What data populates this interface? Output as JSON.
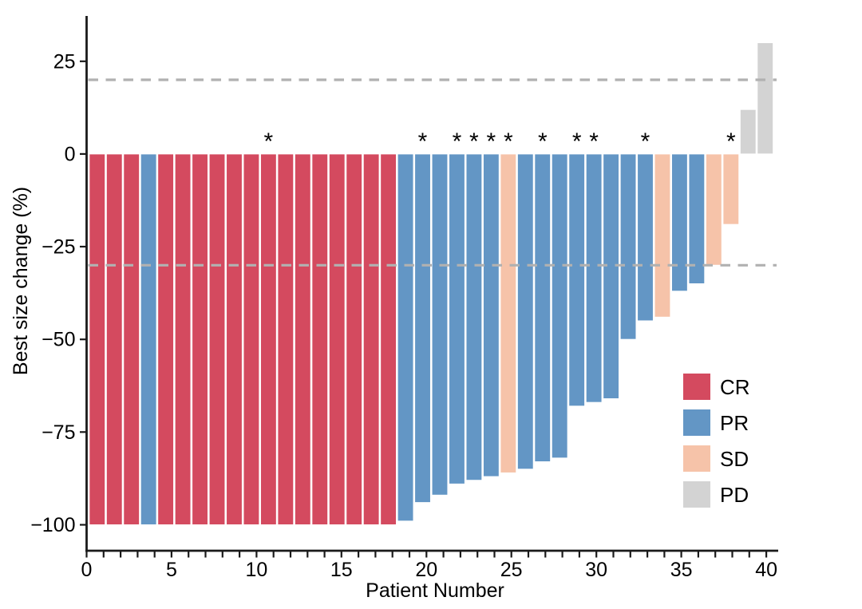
{
  "chart_data": {
    "type": "bar",
    "title": "",
    "xlabel": "Patient Number",
    "ylabel": "Best size change (%)",
    "grid": false,
    "xlim": [
      0,
      40.7
    ],
    "ylim": [
      -107,
      37
    ],
    "bar_region_u": [
      0.12,
      40.44
    ],
    "xticks": [
      {
        "v": 0,
        "label": "0"
      },
      {
        "v": 5,
        "label": "5"
      },
      {
        "v": 10,
        "label": "10"
      },
      {
        "v": 15,
        "label": "15"
      },
      {
        "v": 20,
        "label": "20"
      },
      {
        "v": 25,
        "label": "25"
      },
      {
        "v": 30,
        "label": "30"
      },
      {
        "v": 35,
        "label": "35"
      },
      {
        "v": 40,
        "label": "40"
      }
    ],
    "xticks_minor_step": 1,
    "yticks": [
      {
        "v": 25,
        "label": "25"
      },
      {
        "v": 0,
        "label": "0"
      },
      {
        "v": -25,
        "label": "−25"
      },
      {
        "v": -50,
        "label": "−50"
      },
      {
        "v": -75,
        "label": "−75"
      },
      {
        "v": -100,
        "label": "−100"
      }
    ],
    "reference_lines": [
      {
        "name": "upper",
        "v": 20,
        "color": "#b1b1b1",
        "style": "dashed"
      },
      {
        "name": "lower",
        "v": -30,
        "color": "#b1b1b1",
        "style": "dashed"
      }
    ],
    "annotation_symbol": "*",
    "colors": {
      "CR": "#d44a5f",
      "PR": "#6396c5",
      "SD": "#f6c3a9",
      "PD": "#d3d3d3"
    },
    "legend": {
      "position": "inside-right",
      "entries": [
        {
          "label": "CR",
          "response": "CR"
        },
        {
          "label": "PR",
          "response": "PR"
        },
        {
          "label": "SD",
          "response": "SD"
        },
        {
          "label": "PD",
          "response": "PD"
        }
      ]
    },
    "patients": [
      {
        "n": 1,
        "value": -100,
        "response": "CR",
        "star": false
      },
      {
        "n": 2,
        "value": -100,
        "response": "CR",
        "star": false
      },
      {
        "n": 3,
        "value": -100,
        "response": "CR",
        "star": false
      },
      {
        "n": 4,
        "value": -100,
        "response": "PR",
        "star": false
      },
      {
        "n": 5,
        "value": -100,
        "response": "CR",
        "star": false
      },
      {
        "n": 6,
        "value": -100,
        "response": "CR",
        "star": false
      },
      {
        "n": 7,
        "value": -100,
        "response": "CR",
        "star": false
      },
      {
        "n": 8,
        "value": -100,
        "response": "CR",
        "star": false
      },
      {
        "n": 9,
        "value": -100,
        "response": "CR",
        "star": false
      },
      {
        "n": 10,
        "value": -100,
        "response": "CR",
        "star": false
      },
      {
        "n": 11,
        "value": -100,
        "response": "CR",
        "star": true
      },
      {
        "n": 12,
        "value": -100,
        "response": "CR",
        "star": false
      },
      {
        "n": 13,
        "value": -100,
        "response": "CR",
        "star": false
      },
      {
        "n": 14,
        "value": -100,
        "response": "CR",
        "star": false
      },
      {
        "n": 15,
        "value": -100,
        "response": "CR",
        "star": false
      },
      {
        "n": 16,
        "value": -100,
        "response": "CR",
        "star": false
      },
      {
        "n": 17,
        "value": -100,
        "response": "CR",
        "star": false
      },
      {
        "n": 18,
        "value": -100,
        "response": "CR",
        "star": false
      },
      {
        "n": 19,
        "value": -99,
        "response": "PR",
        "star": false
      },
      {
        "n": 20,
        "value": -94,
        "response": "PR",
        "star": true
      },
      {
        "n": 21,
        "value": -92,
        "response": "PR",
        "star": false
      },
      {
        "n": 22,
        "value": -89,
        "response": "PR",
        "star": true
      },
      {
        "n": 23,
        "value": -88,
        "response": "PR",
        "star": true
      },
      {
        "n": 24,
        "value": -87,
        "response": "PR",
        "star": true
      },
      {
        "n": 25,
        "value": -86,
        "response": "SD",
        "star": true
      },
      {
        "n": 26,
        "value": -85,
        "response": "PR",
        "star": false
      },
      {
        "n": 27,
        "value": -83,
        "response": "PR",
        "star": true
      },
      {
        "n": 28,
        "value": -82,
        "response": "PR",
        "star": false
      },
      {
        "n": 29,
        "value": -68,
        "response": "PR",
        "star": true
      },
      {
        "n": 30,
        "value": -67,
        "response": "PR",
        "star": true
      },
      {
        "n": 31,
        "value": -66,
        "response": "PR",
        "star": false
      },
      {
        "n": 32,
        "value": -50,
        "response": "PR",
        "star": false
      },
      {
        "n": 33,
        "value": -45,
        "response": "PR",
        "star": true
      },
      {
        "n": 34,
        "value": -44,
        "response": "SD",
        "star": false
      },
      {
        "n": 35,
        "value": -37,
        "response": "PR",
        "star": false
      },
      {
        "n": 36,
        "value": -35,
        "response": "PR",
        "star": false
      },
      {
        "n": 37,
        "value": -30,
        "response": "SD",
        "star": false
      },
      {
        "n": 38,
        "value": -19,
        "response": "SD",
        "star": true
      },
      {
        "n": 39,
        "value": 12,
        "response": "PD",
        "star": false
      },
      {
        "n": 40,
        "value": 30,
        "response": "PD",
        "star": false
      }
    ]
  }
}
